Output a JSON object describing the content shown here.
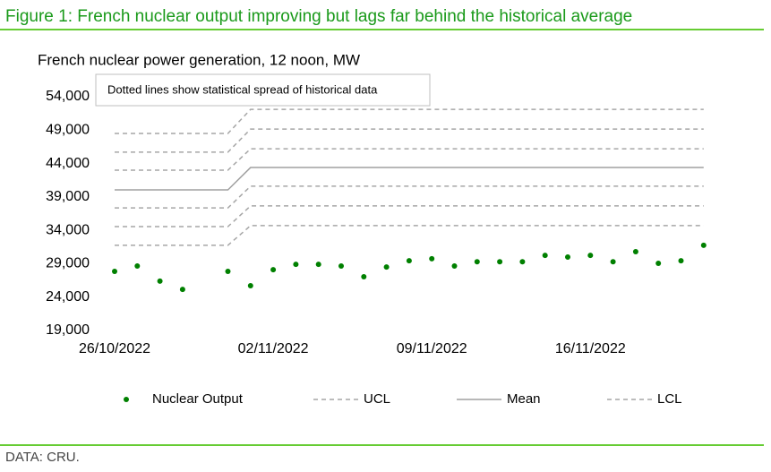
{
  "header": {
    "title": "Figure 1: French nuclear output improving but lags far behind the historical average"
  },
  "footer": {
    "source": "DATA: CRU."
  },
  "chart_data": {
    "type": "line",
    "title": "French nuclear power generation, 12 noon, MW",
    "annotation": "Dotted lines show statistical spread of historical data",
    "categories": [
      "26/10/2022",
      null,
      null,
      null,
      null,
      null,
      null,
      "02/11/2022",
      null,
      null,
      null,
      null,
      null,
      null,
      "09/11/2022",
      null,
      null,
      null,
      null,
      null,
      null,
      "16/11/2022",
      null,
      null,
      null,
      null,
      null
    ],
    "ylim": [
      19000,
      54000
    ],
    "yticks": [
      {
        "value": 19000,
        "label": "19,000"
      },
      {
        "value": 24000,
        "label": "24,000"
      },
      {
        "value": 29000,
        "label": "29,000"
      },
      {
        "value": 34000,
        "label": "34,000"
      },
      {
        "value": 39000,
        "label": "39,000"
      },
      {
        "value": 44000,
        "label": "44,000"
      },
      {
        "value": 49000,
        "label": "49,000"
      },
      {
        "value": 54000,
        "label": "54,000"
      }
    ],
    "series": [
      {
        "name": "Nuclear Output",
        "type": "scatter",
        "color": "#008000",
        "values": [
          27850,
          28650,
          26400,
          25150,
          null,
          27850,
          25700,
          28100,
          28900,
          28900,
          28650,
          27050,
          28500,
          29450,
          29750,
          28650,
          29300,
          29300,
          29300,
          30250,
          30000,
          30250,
          29300,
          30800,
          29050,
          29450,
          31750
        ]
      },
      {
        "name": "UCL",
        "type": "line",
        "dashed": true,
        "color": "#a6a6a6",
        "values": [
          48500,
          48500,
          48500,
          48500,
          48500,
          48500,
          52100,
          52100,
          52100,
          52100,
          52100,
          52100,
          52100,
          52100,
          52100,
          52100,
          52100,
          52100,
          52100,
          52100,
          52100,
          52100,
          52100,
          52100,
          52100,
          52100,
          52100
        ]
      },
      {
        "type": "line",
        "dashed": true,
        "color": "#a6a6a6",
        "values": [
          45700,
          45700,
          45700,
          45700,
          45700,
          45700,
          49150,
          49150,
          49150,
          49150,
          49150,
          49150,
          49150,
          49150,
          49150,
          49150,
          49150,
          49150,
          49150,
          49150,
          49150,
          49150,
          49150,
          49150,
          49150,
          49150,
          49150
        ]
      },
      {
        "type": "line",
        "dashed": true,
        "color": "#a6a6a6",
        "values": [
          43000,
          43000,
          43000,
          43000,
          43000,
          43000,
          46200,
          46200,
          46200,
          46200,
          46200,
          46200,
          46200,
          46200,
          46200,
          46200,
          46200,
          46200,
          46200,
          46200,
          46200,
          46200,
          46200,
          46200,
          46200,
          46200,
          46200
        ]
      },
      {
        "name": "Mean",
        "type": "line",
        "dashed": false,
        "color": "#a0a0a0",
        "values": [
          40050,
          40050,
          40050,
          40050,
          40050,
          40050,
          43400,
          43400,
          43400,
          43400,
          43400,
          43400,
          43400,
          43400,
          43400,
          43400,
          43400,
          43400,
          43400,
          43400,
          43400,
          43400,
          43400,
          43400,
          43400,
          43400,
          43400
        ]
      },
      {
        "name": "LCL",
        "type": "line",
        "dashed": true,
        "color": "#a6a6a6",
        "values": [
          37350,
          37350,
          37350,
          37350,
          37350,
          37350,
          40600,
          40600,
          40600,
          40600,
          40600,
          40600,
          40600,
          40600,
          40600,
          40600,
          40600,
          40600,
          40600,
          40600,
          40600,
          40600,
          40600,
          40600,
          40600,
          40600,
          40600
        ]
      },
      {
        "type": "line",
        "dashed": true,
        "color": "#a6a6a6",
        "values": [
          34550,
          34550,
          34550,
          34550,
          34550,
          34550,
          37650,
          37650,
          37650,
          37650,
          37650,
          37650,
          37650,
          37650,
          37650,
          37650,
          37650,
          37650,
          37650,
          37650,
          37650,
          37650,
          37650,
          37650,
          37650,
          37650,
          37650
        ]
      },
      {
        "type": "line",
        "dashed": true,
        "color": "#a6a6a6",
        "values": [
          31750,
          31750,
          31750,
          31750,
          31750,
          31750,
          34700,
          34700,
          34700,
          34700,
          34700,
          34700,
          34700,
          34700,
          34700,
          34700,
          34700,
          34700,
          34700,
          34700,
          34700,
          34700,
          34700,
          34700,
          34700,
          34700,
          34700
        ]
      }
    ]
  }
}
